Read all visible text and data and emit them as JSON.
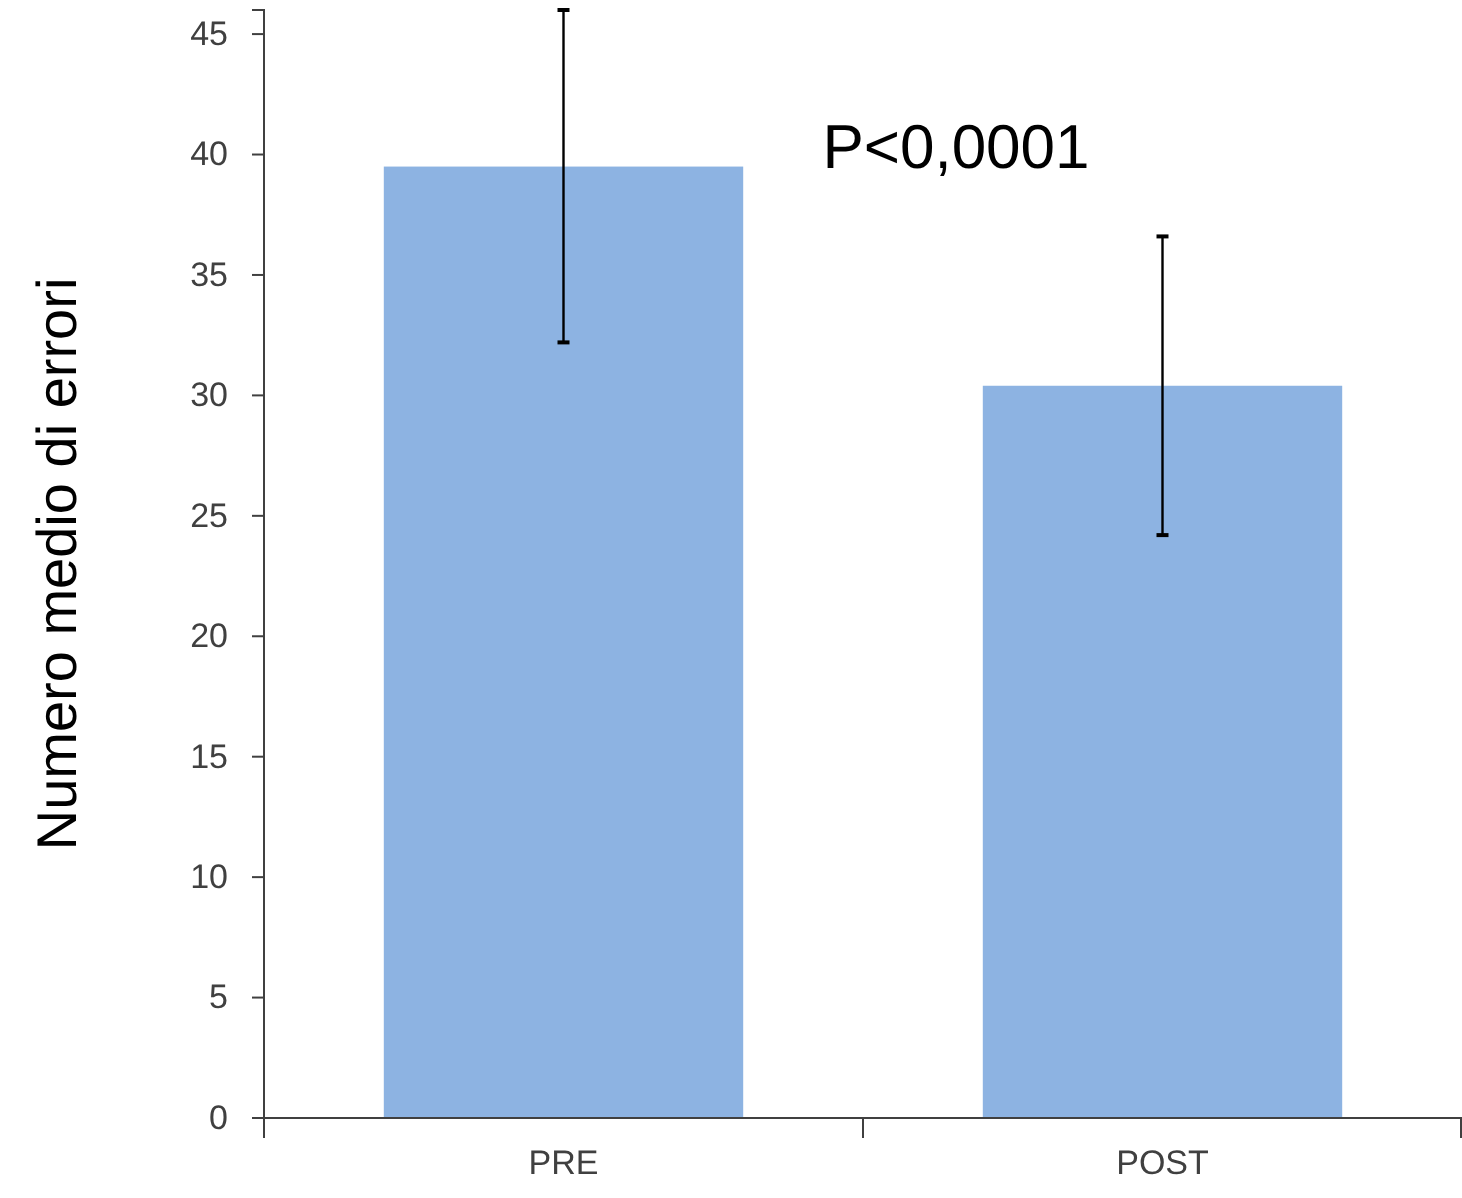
{
  "chart_data": {
    "type": "bar",
    "ylabel": "Numero medio di errori",
    "categories": [
      "PRE",
      "POST"
    ],
    "values": [
      39.5,
      30.4
    ],
    "errors": [
      [
        32.2,
        46
      ],
      [
        24.2,
        36.6
      ]
    ],
    "color": "#8db3e2",
    "ylim": [
      0,
      46
    ],
    "yticks": [
      0,
      5,
      10,
      15,
      20,
      25,
      30,
      35,
      40,
      45
    ],
    "annotations": [
      "P<0,0001"
    ],
    "grid": false
  }
}
